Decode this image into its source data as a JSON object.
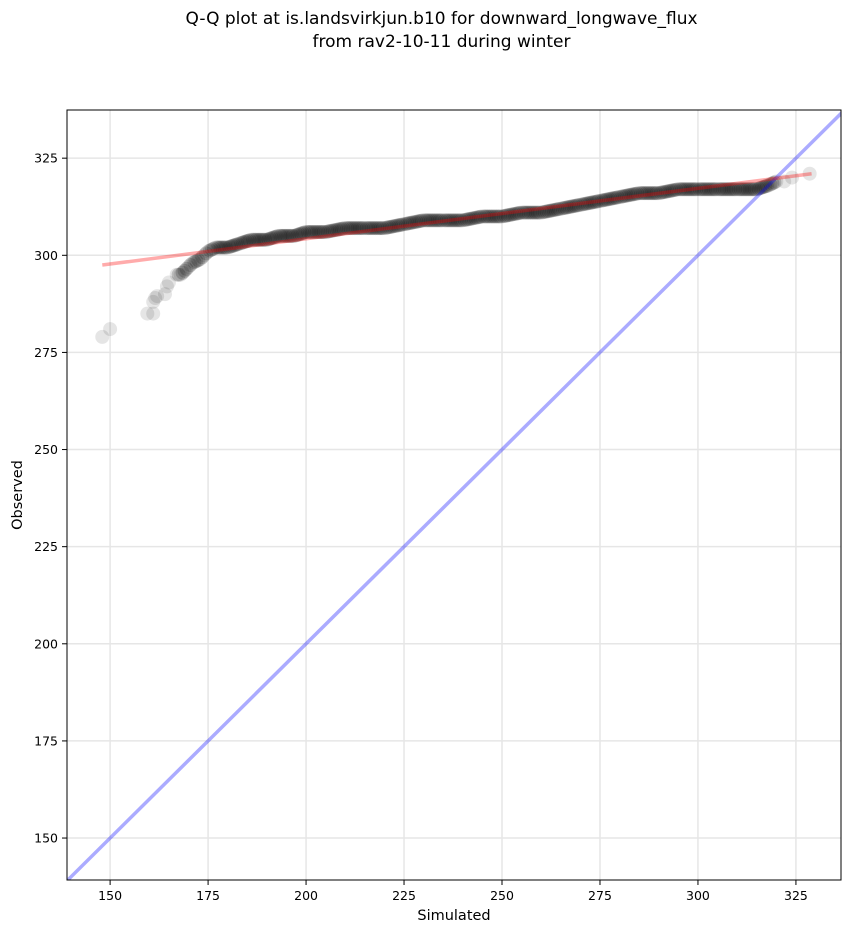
{
  "chart_data": {
    "type": "scatter",
    "title_line1": "Q-Q plot at is.landsvirkjun.b10 for downward_longwave_flux",
    "title_line2": "from rav2-10-11 during winter",
    "xlabel": "Simulated",
    "ylabel": "Observed",
    "xlim": [
      139,
      336.5
    ],
    "ylim": [
      139.2,
      337.4
    ],
    "xticks": [
      150,
      175,
      200,
      225,
      250,
      275,
      300,
      325
    ],
    "yticks": [
      150,
      175,
      200,
      225,
      250,
      275,
      300,
      325
    ],
    "grid": true,
    "points": [
      [
        148,
        279
      ],
      [
        150,
        281
      ],
      [
        159.5,
        285
      ],
      [
        161,
        285
      ],
      [
        161,
        288
      ],
      [
        161.5,
        289
      ],
      [
        162,
        289.5
      ],
      [
        164,
        290
      ],
      [
        164.5,
        292
      ],
      [
        165,
        293
      ],
      [
        167,
        295
      ],
      [
        168,
        295
      ],
      [
        170,
        297
      ],
      [
        171,
        298
      ],
      [
        173,
        299
      ],
      [
        174,
        300
      ],
      [
        175,
        301
      ],
      [
        177,
        302
      ],
      [
        180,
        302
      ],
      [
        183,
        303
      ],
      [
        186,
        304
      ],
      [
        190,
        304
      ],
      [
        193,
        305
      ],
      [
        197,
        305
      ],
      [
        200,
        306
      ],
      [
        205,
        306
      ],
      [
        210,
        307
      ],
      [
        215,
        307
      ],
      [
        220,
        307
      ],
      [
        225,
        308
      ],
      [
        230,
        309
      ],
      [
        235,
        309
      ],
      [
        240,
        309
      ],
      [
        245,
        310
      ],
      [
        250,
        310
      ],
      [
        255,
        311
      ],
      [
        260,
        311
      ],
      [
        265,
        312
      ],
      [
        270,
        313
      ],
      [
        275,
        314
      ],
      [
        280,
        315
      ],
      [
        285,
        316
      ],
      [
        290,
        316
      ],
      [
        295,
        317
      ],
      [
        300,
        317
      ],
      [
        305,
        317
      ],
      [
        310,
        317
      ],
      [
        315,
        317
      ],
      [
        318,
        318
      ],
      [
        320,
        319
      ],
      [
        322,
        319
      ],
      [
        324,
        320
      ],
      [
        328.5,
        321
      ]
    ],
    "fit_line": {
      "x": [
        148,
        329
      ],
      "y": [
        297.5,
        321
      ],
      "color": "#ff0000"
    },
    "identity_line": {
      "color": "#0000ff"
    },
    "point_color": "#000000"
  }
}
